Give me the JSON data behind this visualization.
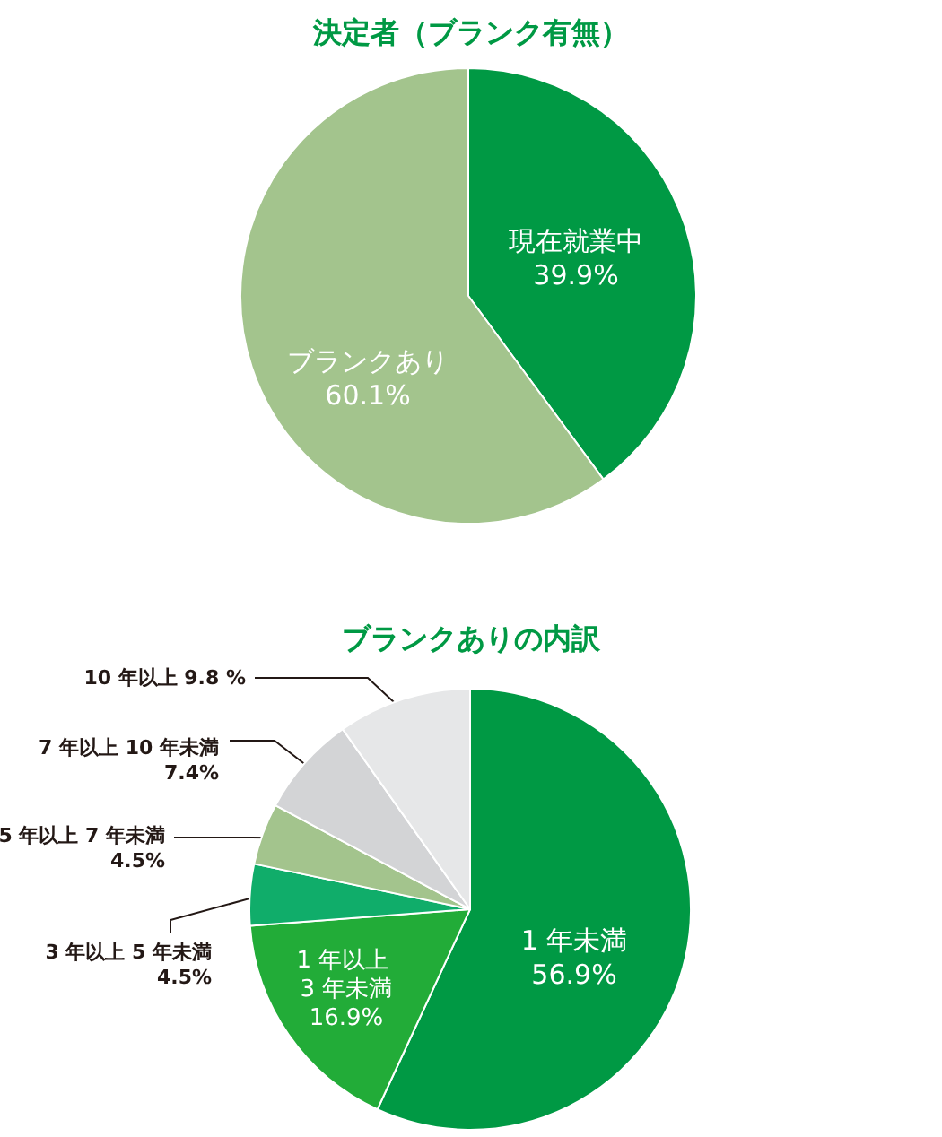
{
  "chart_data": [
    {
      "type": "pie",
      "title": "決定者（ブランク有無）",
      "categories": [
        "現在就業中",
        "ブランクあり"
      ],
      "values": [
        39.9,
        60.1
      ],
      "colors": [
        "#009944",
        "#a3c48d"
      ],
      "value_labels": [
        "39.9%",
        "60.1%"
      ]
    },
    {
      "type": "pie",
      "title": "ブランクありの内訳",
      "categories": [
        "1 年未満",
        "1 年以上 3 年未満",
        "3 年以上 5 年未満",
        "5 年以上 7 年未満",
        "7 年以上 10 年未満",
        "10 年以上"
      ],
      "values": [
        56.9,
        16.9,
        4.5,
        4.5,
        7.4,
        9.8
      ],
      "colors": [
        "#009944",
        "#22ac38",
        "#10ad6a",
        "#a3c48d",
        "#d3d4d6",
        "#e6e7e8"
      ],
      "value_labels": [
        "56.9%",
        "16.9%",
        "4.5%",
        "4.5%",
        "7.4%",
        "9.8 %"
      ]
    }
  ]
}
